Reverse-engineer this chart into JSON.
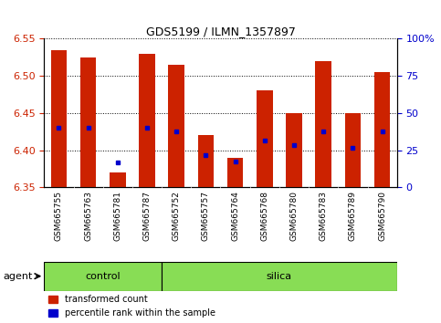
{
  "title": "GDS5199 / ILMN_1357897",
  "samples": [
    "GSM665755",
    "GSM665763",
    "GSM665781",
    "GSM665787",
    "GSM665752",
    "GSM665757",
    "GSM665764",
    "GSM665768",
    "GSM665780",
    "GSM665783",
    "GSM665789",
    "GSM665790"
  ],
  "groups": [
    "control",
    "control",
    "control",
    "control",
    "silica",
    "silica",
    "silica",
    "silica",
    "silica",
    "silica",
    "silica",
    "silica"
  ],
  "bar_values": [
    6.535,
    6.525,
    6.37,
    6.53,
    6.515,
    6.42,
    6.39,
    6.48,
    6.45,
    6.52,
    6.45,
    6.505
  ],
  "bar_base": 6.35,
  "percentile_values": [
    6.43,
    6.43,
    6.383,
    6.43,
    6.425,
    6.393,
    6.385,
    6.413,
    6.407,
    6.425,
    6.403,
    6.425
  ],
  "ylim": [
    6.35,
    6.55
  ],
  "y2lim": [
    0,
    100
  ],
  "yticks": [
    6.35,
    6.4,
    6.45,
    6.5,
    6.55
  ],
  "y2ticks": [
    0,
    25,
    50,
    75,
    100
  ],
  "bar_color": "#cc2200",
  "dot_color": "#0000cc",
  "group_color": "#88dd55",
  "tick_bg_color": "#cccccc",
  "left_label_color": "#cc2200",
  "right_label_color": "#0000cc",
  "bar_width": 0.55,
  "legend_red": "transformed count",
  "legend_blue": "percentile rank within the sample",
  "agent_label": "agent",
  "group_names": [
    "control",
    "silica"
  ]
}
